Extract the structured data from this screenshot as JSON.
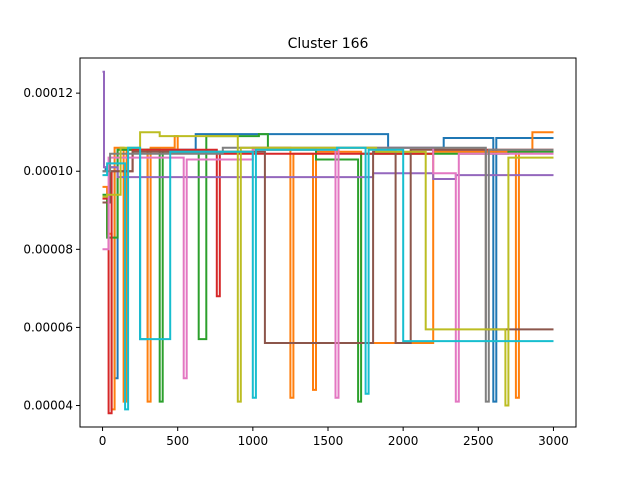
{
  "chart_data": {
    "type": "line",
    "title": "Cluster 166",
    "xlabel": "",
    "ylabel": "",
    "xlim": [
      -150,
      3150
    ],
    "ylim": [
      3.45e-05,
      0.000129
    ],
    "grid": false,
    "legend": "none",
    "x_ticks": [
      0,
      500,
      1000,
      1500,
      2000,
      2500,
      3000
    ],
    "x_tick_labels": [
      "0",
      "500",
      "1000",
      "1500",
      "2000",
      "2500",
      "3000"
    ],
    "y_ticks": [
      4e-05,
      6e-05,
      8e-05,
      0.0001,
      0.00012
    ],
    "y_tick_labels": [
      "0.00004",
      "0.00006",
      "0.00008",
      "0.00010",
      "0.00012"
    ],
    "series": [
      {
        "color": "#1f77b4",
        "points": [
          [
            0,
            0.0001
          ],
          [
            20,
            0.0001
          ],
          [
            20,
            0.000101
          ],
          [
            80,
            0.000101
          ],
          [
            80,
            4.7e-05
          ],
          [
            100,
            4.7e-05
          ],
          [
            100,
            0.0001055
          ],
          [
            250,
            0.0001055
          ],
          [
            250,
            5.7e-05
          ],
          [
            300,
            5.7e-05
          ],
          [
            300,
            0.0001055
          ],
          [
            620,
            0.0001055
          ],
          [
            620,
            0.0001095
          ],
          [
            1260,
            0.0001095
          ],
          [
            1260,
            0.0001095
          ],
          [
            1900,
            0.0001095
          ],
          [
            1900,
            0.000106
          ],
          [
            2270,
            0.000106
          ],
          [
            2270,
            0.0001085
          ],
          [
            2600,
            0.0001085
          ],
          [
            2600,
            4.1e-05
          ],
          [
            2620,
            4.1e-05
          ],
          [
            2620,
            0.0001085
          ],
          [
            3000,
            0.0001085
          ]
        ]
      },
      {
        "color": "#ff7f0e",
        "points": [
          [
            0,
            9.6e-05
          ],
          [
            30,
            9.6e-05
          ],
          [
            30,
            8.4e-05
          ],
          [
            60,
            8.4e-05
          ],
          [
            60,
            3.9e-05
          ],
          [
            80,
            3.9e-05
          ],
          [
            80,
            0.000106
          ],
          [
            140,
            0.000106
          ],
          [
            140,
            4.1e-05
          ],
          [
            160,
            4.1e-05
          ],
          [
            160,
            0.0001055
          ],
          [
            300,
            0.0001055
          ],
          [
            300,
            4.1e-05
          ],
          [
            320,
            4.1e-05
          ],
          [
            320,
            0.000106
          ],
          [
            480,
            0.000106
          ],
          [
            480,
            0.000109
          ],
          [
            500,
            0.000109
          ],
          [
            500,
            0.000105
          ],
          [
            1000,
            0.000105
          ],
          [
            1000,
            0.000106
          ],
          [
            1250,
            0.000106
          ],
          [
            1250,
            4.2e-05
          ],
          [
            1270,
            4.2e-05
          ],
          [
            1270,
            0.0001045
          ],
          [
            1400,
            0.0001045
          ],
          [
            1400,
            4.4e-05
          ],
          [
            1420,
            4.4e-05
          ],
          [
            1420,
            0.000105
          ],
          [
            1720,
            0.000105
          ],
          [
            1720,
            5.6e-05
          ],
          [
            2200,
            5.6e-05
          ],
          [
            2200,
            0.000105
          ],
          [
            2750,
            0.000105
          ],
          [
            2750,
            4.2e-05
          ],
          [
            2770,
            4.2e-05
          ],
          [
            2770,
            0.000105
          ],
          [
            2860,
            0.000105
          ],
          [
            2860,
            0.00011
          ],
          [
            3000,
            0.00011
          ]
        ]
      },
      {
        "color": "#2ca02c",
        "points": [
          [
            0,
            9.4e-05
          ],
          [
            30,
            9.4e-05
          ],
          [
            30,
            8.3e-05
          ],
          [
            100,
            8.3e-05
          ],
          [
            100,
            0.0001055
          ],
          [
            380,
            0.0001055
          ],
          [
            380,
            4.1e-05
          ],
          [
            400,
            4.1e-05
          ],
          [
            400,
            0.000105
          ],
          [
            640,
            0.000105
          ],
          [
            640,
            5.7e-05
          ],
          [
            690,
            5.7e-05
          ],
          [
            690,
            0.000109
          ],
          [
            1040,
            0.000109
          ],
          [
            1040,
            0.0001095
          ],
          [
            1100,
            0.0001095
          ],
          [
            1100,
            0.0001055
          ],
          [
            1420,
            0.0001055
          ],
          [
            1420,
            0.000103
          ],
          [
            1700,
            0.000103
          ],
          [
            1700,
            4.1e-05
          ],
          [
            1720,
            4.1e-05
          ],
          [
            1720,
            0.0001045
          ],
          [
            2700,
            0.0001045
          ],
          [
            2700,
            0.000105
          ],
          [
            3000,
            0.000105
          ]
        ]
      },
      {
        "color": "#d62728",
        "points": [
          [
            0,
            9.3e-05
          ],
          [
            40,
            9.3e-05
          ],
          [
            40,
            3.8e-05
          ],
          [
            60,
            3.8e-05
          ],
          [
            60,
            0.0001
          ],
          [
            200,
            0.0001
          ],
          [
            200,
            0.0001055
          ],
          [
            760,
            0.0001055
          ],
          [
            760,
            6.8e-05
          ],
          [
            780,
            6.8e-05
          ],
          [
            780,
            0.0001045
          ],
          [
            2200,
            0.0001045
          ],
          [
            2200,
            0.0001055
          ],
          [
            3000,
            0.0001055
          ]
        ]
      },
      {
        "color": "#9467bd",
        "points": [
          [
            0,
            0.0001255
          ],
          [
            10,
            0.0001255
          ],
          [
            10,
            0.000101
          ],
          [
            100,
            0.000101
          ],
          [
            100,
            9.85e-05
          ],
          [
            1800,
            9.85e-05
          ],
          [
            1800,
            9.95e-05
          ],
          [
            2200,
            9.95e-05
          ],
          [
            2200,
            9.8e-05
          ],
          [
            2350,
            9.8e-05
          ],
          [
            2350,
            9.9e-05
          ],
          [
            3000,
            9.9e-05
          ]
        ]
      },
      {
        "color": "#8c564b",
        "points": [
          [
            0,
            9.2e-05
          ],
          [
            50,
            9.2e-05
          ],
          [
            50,
            0.0001
          ],
          [
            200,
            0.0001
          ],
          [
            200,
            0.000105
          ],
          [
            1080,
            0.000105
          ],
          [
            1080,
            5.6e-05
          ],
          [
            1800,
            5.6e-05
          ],
          [
            1800,
            0.000105
          ],
          [
            1950,
            0.000105
          ],
          [
            1950,
            5.6e-05
          ],
          [
            2050,
            5.6e-05
          ],
          [
            2050,
            0.0001055
          ],
          [
            2550,
            0.0001055
          ],
          [
            2550,
            5.95e-05
          ],
          [
            3000,
            5.95e-05
          ]
        ]
      },
      {
        "color": "#e377c2",
        "points": [
          [
            0,
            8e-05
          ],
          [
            40,
            8e-05
          ],
          [
            40,
            0.0001035
          ],
          [
            540,
            0.0001035
          ],
          [
            540,
            4.7e-05
          ],
          [
            560,
            4.7e-05
          ],
          [
            560,
            0.000103
          ],
          [
            1000,
            0.000103
          ],
          [
            1000,
            0.0001055
          ],
          [
            1550,
            0.0001055
          ],
          [
            1550,
            4.2e-05
          ],
          [
            1570,
            4.2e-05
          ],
          [
            1570,
            0.000106
          ],
          [
            2200,
            0.000106
          ],
          [
            2200,
            9.95e-05
          ],
          [
            2350,
            9.95e-05
          ],
          [
            2350,
            4.1e-05
          ],
          [
            2370,
            4.1e-05
          ],
          [
            2370,
            0.0001045
          ],
          [
            3000,
            0.0001045
          ]
        ]
      },
      {
        "color": "#7f7f7f",
        "points": [
          [
            0,
            0.0001
          ],
          [
            50,
            0.0001
          ],
          [
            50,
            0.0001045
          ],
          [
            800,
            0.0001045
          ],
          [
            800,
            0.000106
          ],
          [
            1300,
            0.000106
          ],
          [
            1300,
            0.000106
          ],
          [
            2550,
            0.000106
          ],
          [
            2550,
            4.1e-05
          ],
          [
            2570,
            4.1e-05
          ],
          [
            2570,
            0.0001055
          ],
          [
            3000,
            0.0001055
          ]
        ]
      },
      {
        "color": "#bcbd22",
        "points": [
          [
            0,
            9.35e-05
          ],
          [
            30,
            9.35e-05
          ],
          [
            30,
            9.4e-05
          ],
          [
            120,
            9.4e-05
          ],
          [
            120,
            0.000106
          ],
          [
            250,
            0.000106
          ],
          [
            250,
            0.00011
          ],
          [
            380,
            0.00011
          ],
          [
            380,
            0.000109
          ],
          [
            900,
            0.000109
          ],
          [
            900,
            4.1e-05
          ],
          [
            920,
            4.1e-05
          ],
          [
            920,
            0.000106
          ],
          [
            1820,
            0.000106
          ],
          [
            1820,
            0.000105
          ],
          [
            2150,
            0.000105
          ],
          [
            2150,
            5.95e-05
          ],
          [
            2680,
            5.95e-05
          ],
          [
            2680,
            4e-05
          ],
          [
            2700,
            4e-05
          ],
          [
            2700,
            0.0001035
          ],
          [
            3000,
            0.0001035
          ]
        ]
      },
      {
        "color": "#17becf",
        "points": [
          [
            0,
            9.9e-05
          ],
          [
            30,
            9.9e-05
          ],
          [
            30,
            0.000102
          ],
          [
            150,
            0.000102
          ],
          [
            150,
            3.9e-05
          ],
          [
            170,
            3.9e-05
          ],
          [
            170,
            0.000106
          ],
          [
            250,
            0.000106
          ],
          [
            250,
            5.7e-05
          ],
          [
            450,
            5.7e-05
          ],
          [
            450,
            0.000105
          ],
          [
            1000,
            0.000105
          ],
          [
            1000,
            4.2e-05
          ],
          [
            1020,
            4.2e-05
          ],
          [
            1020,
            0.0001055
          ],
          [
            1560,
            0.0001055
          ],
          [
            1560,
            0.000106
          ],
          [
            1750,
            0.000106
          ],
          [
            1750,
            4.3e-05
          ],
          [
            1770,
            4.3e-05
          ],
          [
            1770,
            0.0001055
          ],
          [
            2000,
            0.0001055
          ],
          [
            2000,
            5.65e-05
          ],
          [
            3000,
            5.65e-05
          ]
        ]
      }
    ]
  }
}
